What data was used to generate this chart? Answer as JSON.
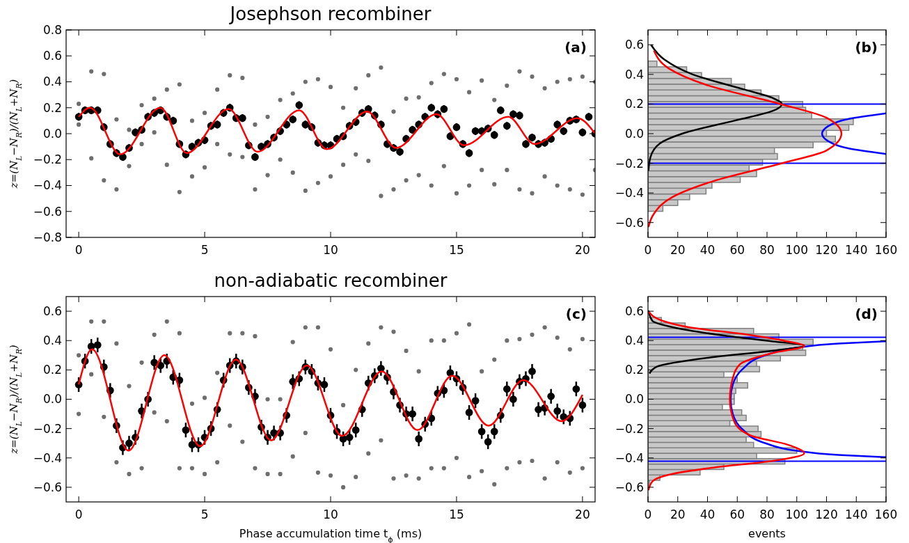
{
  "chart_data": [
    {
      "type": "scatter",
      "title": "Josephson recombiner",
      "ylabel": "z=(N$_{L}$−N$_{R}$)/(N$_{L}$+N$_{R}$)",
      "xlim": [
        -0.5,
        20.5
      ],
      "xticks": [
        0,
        5,
        10,
        15,
        20
      ],
      "ylim": [
        -0.8,
        0.8
      ],
      "yticks": [
        {
          "value": -0.8,
          "label": "−0.8"
        },
        {
          "value": -0.6,
          "label": "−0.6"
        },
        {
          "value": -0.4,
          "label": "−0.4"
        },
        {
          "value": -0.2,
          "label": "−0.2"
        },
        {
          "value": 0,
          "label": "0.0"
        },
        0.2,
        0.4,
        0.6,
        0.8
      ],
      "marker": "circle",
      "annotations": [
        "(a)"
      ],
      "series": [
        {
          "type": "scatter",
          "color": "#6e6e6e",
          "x": [
            0,
            0,
            0.5,
            0.5,
            1,
            1,
            1.5,
            1.5,
            2,
            2,
            2.5,
            2.5,
            3,
            3,
            3.5,
            3.5,
            4,
            4,
            4.5,
            4.5,
            5,
            5,
            5.5,
            5.5,
            6,
            6,
            6.5,
            6.5,
            7,
            7,
            7.5,
            7.5,
            8,
            8,
            8.5,
            8.5,
            9,
            9,
            9.5,
            9.5,
            10,
            10,
            10.5,
            10.5,
            11,
            11,
            11.5,
            11.5,
            12,
            12,
            12.5,
            12.5,
            13,
            13,
            13.5,
            13.5,
            14,
            14,
            14.5,
            14.5,
            15,
            15,
            15.5,
            15.5,
            16,
            16,
            16.5,
            16.5,
            17,
            17,
            17.5,
            17.5,
            18,
            18,
            18.5,
            18.5,
            19,
            19,
            19.5,
            19.5,
            20,
            20,
            20.5,
            20.5
          ],
          "values": [
            0.23,
            0.07,
            0.48,
            -0.19,
            0.46,
            -0.36,
            0.11,
            -0.43,
            0.03,
            -0.25,
            0.22,
            -0.08,
            0.27,
            0.01,
            0.34,
            -0.24,
            0.38,
            -0.45,
            0.1,
            -0.33,
            0.16,
            -0.26,
            0.34,
            -0.08,
            0.45,
            -0.16,
            0.43,
            -0.18,
            0.07,
            -0.43,
            0.13,
            -0.32,
            0.26,
            -0.2,
            0.31,
            -0.3,
            0.4,
            -0.44,
            0.42,
            -0.38,
            0.36,
            -0.33,
            0.2,
            -0.24,
            0.35,
            -0.16,
            0.45,
            -0.21,
            0.51,
            -0.48,
            0.17,
            -0.43,
            0.27,
            -0.36,
            0.28,
            -0.32,
            0.39,
            -0.4,
            0.46,
            -0.25,
            0.42,
            -0.46,
            0.32,
            -0.4,
            0.41,
            -0.28,
            0.26,
            -0.39,
            0.37,
            -0.28,
            0.48,
            -0.43,
            0.44,
            -0.46,
            0.35,
            -0.33,
            0.4,
            -0.4,
            0.42,
            -0.43,
            0.44,
            -0.47,
            0.4,
            -0.28
          ]
        },
        {
          "type": "scatter",
          "color": "#000000",
          "x": [
            0,
            0.25,
            0.5,
            0.75,
            1,
            1.25,
            1.5,
            1.75,
            2,
            2.25,
            2.5,
            2.75,
            3,
            3.25,
            3.5,
            3.75,
            4,
            4.25,
            4.5,
            4.75,
            5,
            5.25,
            5.5,
            5.75,
            6,
            6.25,
            6.5,
            6.75,
            7,
            7.25,
            7.5,
            7.75,
            8,
            8.25,
            8.5,
            8.75,
            9,
            9.25,
            9.5,
            9.75,
            10,
            10.25,
            10.5,
            10.75,
            11,
            11.25,
            11.5,
            11.75,
            12,
            12.25,
            12.5,
            12.75,
            13,
            13.25,
            13.5,
            13.75,
            14,
            14.25,
            14.5,
            14.75,
            15,
            15.25,
            15.5,
            15.75,
            16,
            16.25,
            16.5,
            16.75,
            17,
            17.25,
            17.5,
            17.75,
            18,
            18.25,
            18.5,
            18.75,
            19,
            19.25,
            19.5,
            19.75,
            20,
            20.25,
            20.5
          ],
          "values": [
            0.13,
            0.18,
            0.18,
            0.18,
            0.05,
            -0.08,
            -0.15,
            -0.18,
            -0.11,
            0.01,
            0.03,
            0.13,
            0.16,
            0.18,
            0.13,
            0.1,
            -0.08,
            -0.16,
            -0.1,
            -0.07,
            -0.05,
            0.06,
            0.07,
            0.16,
            0.2,
            0.12,
            0.12,
            -0.09,
            -0.18,
            -0.1,
            -0.08,
            -0.03,
            0.02,
            0.07,
            0.11,
            0.22,
            0.07,
            0.05,
            -0.07,
            -0.09,
            -0.09,
            -0.04,
            -0.02,
            0.06,
            0.09,
            0.16,
            0.19,
            0.14,
            0.07,
            -0.08,
            -0.11,
            -0.14,
            -0.04,
            0.03,
            0.07,
            0.13,
            0.2,
            0.15,
            0.19,
            -0.02,
            0.05,
            -0.08,
            -0.15,
            0.02,
            0.02,
            0.04,
            -0.01,
            0.18,
            0.06,
            0.15,
            0.14,
            -0.08,
            -0.03,
            -0.08,
            -0.07,
            -0.04,
            0.07,
            0.02,
            0.1,
            0.11,
            0.01,
            0.13,
            0.0
          ],
          "errors": [
            0.03,
            0.03,
            0.03,
            0.03,
            0.03,
            0.03,
            0.03,
            0.03,
            0.03,
            0.03,
            0.03,
            0.03,
            0.03,
            0.03,
            0.03,
            0.03,
            0.03,
            0.03,
            0.03,
            0.03,
            0.03,
            0.03,
            0.03,
            0.03,
            0.03,
            0.03,
            0.03,
            0.03,
            0.03,
            0.03,
            0.03,
            0.03,
            0.03,
            0.03,
            0.03,
            0.03,
            0.03,
            0.03,
            0.03,
            0.03,
            0.03,
            0.03,
            0.03,
            0.03,
            0.03,
            0.03,
            0.03,
            0.03,
            0.03,
            0.03,
            0.03,
            0.03,
            0.03,
            0.03,
            0.03,
            0.03,
            0.03,
            0.03,
            0.03,
            0.03,
            0.03,
            0.03,
            0.03,
            0.03,
            0.03,
            0.03,
            0.03,
            0.03,
            0.03,
            0.03,
            0.03,
            0.03,
            0.03,
            0.03,
            0.03,
            0.03,
            0.03,
            0.03,
            0.03,
            0.03,
            0.03,
            0.03,
            0.03
          ]
        },
        {
          "type": "line",
          "marker": "none",
          "color": "#ff0000",
          "x": [
            0,
            0.45,
            1.65,
            3.24,
            4.29,
            5.95,
            7.1,
            8.75,
            9.85,
            11.45,
            12.6,
            14.2,
            15.3,
            17.05,
            18.1,
            19.8,
            20.5
          ],
          "values": [
            0.13,
            0.2,
            -0.16,
            0.2,
            -0.15,
            0.19,
            -0.14,
            0.18,
            -0.12,
            0.17,
            -0.11,
            0.15,
            -0.09,
            0.13,
            -0.08,
            0.12,
            0.0
          ]
        }
      ]
    },
    {
      "type": "histogram",
      "orientation": "horizontal",
      "color": "#c8c8c8",
      "xlim": [
        0,
        160
      ],
      "xticks": [
        0,
        20,
        40,
        60,
        80,
        100,
        120,
        140,
        160
      ],
      "ylim": [
        -0.7,
        0.7
      ],
      "yticks": [
        {
          "value": -0.6,
          "label": "−0.6"
        },
        {
          "value": -0.4,
          "label": "−0.4"
        },
        {
          "value": -0.2,
          "label": "−0.2"
        },
        {
          "value": 0,
          "label": "0.0"
        },
        0.2,
        0.4,
        0.6
      ],
      "annotations": [
        "(b)"
      ],
      "bins": [
        -0.524,
        -0.485,
        -0.446,
        -0.407,
        -0.368,
        -0.329,
        -0.29,
        -0.251,
        -0.212,
        -0.173,
        -0.134,
        -0.095,
        -0.056,
        -0.017,
        0.022,
        0.061,
        0.1,
        0.139,
        0.178,
        0.217,
        0.256,
        0.295,
        0.334,
        0.373,
        0.412,
        0.451,
        0.49
      ],
      "values": [
        10,
        20,
        28,
        39,
        43,
        62,
        73,
        68,
        77,
        87,
        85,
        111,
        126,
        120,
        135,
        138,
        110,
        106,
        104,
        88,
        76,
        65,
        56,
        36,
        26,
        6
      ],
      "ref_lines": [
        {
          "axis": "y",
          "value": 0.2,
          "color": "#0000ff"
        },
        {
          "axis": "y",
          "value": -0.2,
          "color": "#0000ff"
        }
      ],
      "series": [
        {
          "type": "line",
          "color": "#0000ff",
          "x": [
            -0.137,
            -0.1,
            -0.05,
            0,
            0.05,
            0.1,
            0.137
          ],
          "values": [
            160,
            135,
            121,
            117,
            121,
            135,
            160
          ]
        },
        {
          "type": "line",
          "color": "#000000",
          "x": [
            -0.25,
            -0.16,
            -0.066,
            0,
            0.09,
            0.154,
            0.2,
            0.24,
            0.3,
            0.4,
            0.5,
            0.6
          ],
          "values": [
            0.3,
            1.6,
            8,
            23,
            59,
            84,
            90,
            84,
            64,
            30,
            11,
            2
          ]
        },
        {
          "type": "line",
          "color": "#ff0000",
          "x": [
            -0.63,
            -0.54,
            -0.43,
            -0.32,
            -0.2,
            -0.113,
            0,
            0.107,
            0.2,
            0.33,
            0.44,
            0.56
          ],
          "values": [
            0.3,
            4,
            16,
            44,
            90,
            120,
            130,
            120,
            89,
            39,
            14,
            4
          ]
        }
      ]
    },
    {
      "type": "scatter",
      "title": "non-adiabatic recombiner",
      "xlabel": "Phase accumulation time t$_{ϕ}$ (ms)",
      "ylabel": "z=(N$_{L}$−N$_{R}$)/(N$_{L}$+N$_{R}$)",
      "xlim": [
        -0.5,
        20.5
      ],
      "xticks": [
        0,
        5,
        10,
        15,
        20
      ],
      "ylim": [
        -0.7,
        0.7
      ],
      "yticks": [
        {
          "value": -0.6,
          "label": "−0.6"
        },
        {
          "value": -0.4,
          "label": "−0.4"
        },
        {
          "value": -0.2,
          "label": "−0.2"
        },
        {
          "value": 0,
          "label": "0.0"
        },
        0.2,
        0.4,
        0.6
      ],
      "marker": "circle",
      "annotations": [
        "(c)"
      ],
      "series": [
        {
          "type": "scatter",
          "color": "#6e6e6e",
          "x": [
            0,
            0,
            0.5,
            0.5,
            1,
            1,
            1.5,
            1.5,
            2,
            2,
            2.5,
            2.5,
            3,
            3,
            3.5,
            3.5,
            4,
            4,
            4.5,
            4.5,
            5,
            5,
            5.5,
            5.5,
            6,
            6,
            6.5,
            6.5,
            7,
            7,
            7.5,
            7.5,
            8,
            8,
            8.5,
            8.5,
            9,
            9,
            9.5,
            9.5,
            10,
            10,
            10.5,
            10.5,
            11,
            11,
            11.5,
            11.5,
            12,
            12,
            12.5,
            12.5,
            13,
            13,
            13.5,
            13.5,
            14,
            14,
            14.5,
            14.5,
            15,
            15,
            15.5,
            15.5,
            16,
            16,
            16.5,
            16.5,
            17,
            17,
            17.5,
            17.5,
            18,
            18,
            18.5,
            18.5,
            19,
            19,
            19.5,
            19.5,
            20,
            20
          ],
          "values": [
            0.3,
            -0.1,
            0.53,
            0.17,
            0.53,
            -0.12,
            0.38,
            -0.43,
            0.09,
            -0.51,
            0.25,
            -0.47,
            0.44,
            -0.09,
            0.53,
            -0.15,
            0.45,
            -0.47,
            -0.03,
            -0.47,
            0.01,
            -0.51,
            0.18,
            -0.43,
            0.45,
            -0.18,
            0.45,
            -0.29,
            0.43,
            -0.47,
            0.0,
            -0.51,
            0.0,
            -0.51,
            0.39,
            -0.39,
            0.49,
            -0.23,
            0.49,
            -0.5,
            0.34,
            -0.52,
            -0.04,
            -0.6,
            0.2,
            -0.53,
            0.38,
            -0.37,
            0.49,
            -0.28,
            0.46,
            -0.54,
            0.33,
            -0.52,
            0.19,
            -0.54,
            0.4,
            -0.47,
            0.4,
            -0.47,
            0.45,
            -0.4,
            0.51,
            -0.53,
            0.19,
            -0.49,
            0.27,
            -0.58,
            0.4,
            -0.47,
            0.41,
            -0.43,
            0.44,
            -0.42,
            0.49,
            -0.54,
            0.42,
            -0.43,
            0.34,
            -0.5,
            0.41,
            -0.47
          ]
        },
        {
          "type": "scatter",
          "color": "#000000",
          "x": [
            0,
            0.25,
            0.5,
            0.75,
            1,
            1.25,
            1.5,
            1.75,
            2,
            2.25,
            2.5,
            2.75,
            3,
            3.25,
            3.5,
            3.75,
            4,
            4.25,
            4.5,
            4.75,
            5,
            5.25,
            5.5,
            5.75,
            6,
            6.25,
            6.5,
            6.75,
            7,
            7.25,
            7.5,
            7.75,
            8,
            8.25,
            8.5,
            8.75,
            9,
            9.25,
            9.5,
            9.75,
            10,
            10.25,
            10.5,
            10.75,
            11,
            11.25,
            11.5,
            11.75,
            12,
            12.25,
            12.5,
            12.75,
            13,
            13.25,
            13.5,
            13.75,
            14,
            14.25,
            14.5,
            14.75,
            15,
            15.25,
            15.5,
            15.75,
            16,
            16.25,
            16.5,
            16.75,
            17,
            17.25,
            17.5,
            17.75,
            18,
            18.25,
            18.5,
            18.75,
            19,
            19.25,
            19.5,
            19.75,
            20
          ],
          "values": [
            0.1,
            0.26,
            0.36,
            0.37,
            0.22,
            0.06,
            -0.18,
            -0.33,
            -0.3,
            -0.26,
            -0.08,
            0.0,
            0.25,
            0.23,
            0.26,
            0.15,
            0.13,
            -0.21,
            -0.31,
            -0.31,
            -0.26,
            -0.2,
            -0.07,
            0.13,
            0.23,
            0.26,
            0.22,
            0.08,
            0.02,
            -0.19,
            -0.26,
            -0.23,
            -0.23,
            -0.11,
            0.12,
            0.14,
            0.22,
            0.19,
            0.11,
            0.1,
            -0.11,
            -0.22,
            -0.27,
            -0.26,
            -0.21,
            -0.07,
            0.11,
            0.16,
            0.21,
            0.15,
            0.05,
            -0.04,
            -0.1,
            -0.1,
            -0.27,
            -0.17,
            -0.13,
            0.04,
            0.06,
            0.18,
            0.14,
            0.08,
            -0.09,
            -0.01,
            -0.22,
            -0.29,
            -0.22,
            -0.11,
            0.07,
            0.0,
            0.12,
            0.14,
            0.19,
            -0.07,
            -0.06,
            0.02,
            -0.08,
            -0.12,
            -0.13,
            0.07,
            -0.04
          ],
          "errors": [
            0.05,
            0.05,
            0.05,
            0.05,
            0.05,
            0.05,
            0.05,
            0.05,
            0.05,
            0.05,
            0.05,
            0.05,
            0.05,
            0.05,
            0.05,
            0.05,
            0.05,
            0.05,
            0.05,
            0.05,
            0.05,
            0.05,
            0.05,
            0.05,
            0.05,
            0.05,
            0.05,
            0.05,
            0.05,
            0.05,
            0.05,
            0.05,
            0.05,
            0.05,
            0.05,
            0.05,
            0.05,
            0.05,
            0.05,
            0.05,
            0.05,
            0.05,
            0.05,
            0.05,
            0.05,
            0.05,
            0.05,
            0.05,
            0.05,
            0.05,
            0.05,
            0.05,
            0.05,
            0.05,
            0.05,
            0.05,
            0.05,
            0.05,
            0.05,
            0.05,
            0.05,
            0.05,
            0.05,
            0.05,
            0.05,
            0.05,
            0.05,
            0.05,
            0.05,
            0.05,
            0.05,
            0.05,
            0.05,
            0.05,
            0.05,
            0.05,
            0.05,
            0.05,
            0.05,
            0.05,
            0.05
          ]
        },
        {
          "type": "line",
          "marker": "none",
          "color": "#ff0000",
          "x": [
            0,
            0.53,
            1.98,
            3.4,
            4.82,
            6.24,
            7.64,
            9.06,
            10.46,
            12.03,
            13.45,
            14.83,
            16.27,
            17.65,
            19.17,
            20.0
          ],
          "values": [
            0.1,
            0.34,
            -0.35,
            0.3,
            -0.32,
            0.27,
            -0.28,
            0.23,
            -0.25,
            0.19,
            -0.21,
            0.16,
            -0.18,
            0.13,
            -0.15,
            0.03
          ]
        }
      ]
    },
    {
      "type": "histogram",
      "orientation": "horizontal",
      "color": "#c8c8c8",
      "xlabel": "events",
      "xlim": [
        0,
        160
      ],
      "xticks": [
        0,
        20,
        40,
        60,
        80,
        100,
        120,
        140,
        160
      ],
      "ylim": [
        -0.7,
        0.7
      ],
      "yticks": [
        {
          "value": -0.6,
          "label": "−0.6"
        },
        {
          "value": -0.4,
          "label": "−0.4"
        },
        {
          "value": -0.2,
          "label": "−0.2"
        },
        {
          "value": 0,
          "label": "0.0"
        },
        0.2,
        0.4,
        0.6
      ],
      "annotations": [
        "(d)"
      ],
      "bins": [
        -0.59,
        -0.553,
        -0.516,
        -0.479,
        -0.442,
        -0.405,
        -0.368,
        -0.331,
        -0.294,
        -0.257,
        -0.22,
        -0.183,
        -0.146,
        -0.109,
        -0.072,
        -0.035,
        0.002,
        0.039,
        0.076,
        0.113,
        0.15,
        0.187,
        0.224,
        0.261,
        0.298,
        0.335,
        0.372,
        0.409,
        0.446,
        0.483,
        0.52,
        0.557
      ],
      "values": [
        1,
        8,
        35,
        51,
        92,
        73,
        100,
        71,
        66,
        76,
        74,
        55,
        66,
        63,
        50,
        58,
        58,
        59,
        67,
        60,
        51,
        75,
        73,
        89,
        106,
        104,
        111,
        88,
        71,
        25,
        9
      ],
      "ref_lines": [
        {
          "axis": "y",
          "value": 0.422,
          "color": "#0000ff"
        },
        {
          "axis": "y",
          "value": -0.422,
          "color": "#0000ff"
        }
      ],
      "series": [
        {
          "type": "line",
          "color": "#0000ff",
          "x": [
            -0.395,
            -0.38,
            -0.35,
            -0.3,
            -0.2,
            -0.1,
            0,
            0.1,
            0.2,
            0.3,
            0.35,
            0.38,
            0.395
          ],
          "values": [
            160,
            128,
            99,
            79,
            63,
            57,
            55.5,
            57,
            63,
            79,
            99,
            128,
            160
          ]
        },
        {
          "type": "line",
          "color": "#000000",
          "x": [
            0.175,
            0.222,
            0.284,
            0.331,
            0.366,
            0.394,
            0.433,
            0.49,
            0.534,
            0.605
          ],
          "values": [
            1,
            6,
            41,
            84,
            105,
            84,
            52,
            17,
            3,
            0.3
          ]
        },
        {
          "type": "line",
          "color": "#ff0000",
          "x": [
            -0.62,
            -0.56,
            -0.51,
            -0.466,
            -0.42,
            -0.369,
            -0.31,
            -0.247,
            -0.153,
            0,
            0.144,
            0.24,
            0.316,
            0.3625,
            0.4,
            0.44,
            0.49,
            0.534,
            0.597
          ],
          "values": [
            0.3,
            3,
            16,
            44,
            84,
            105,
            94,
            69,
            58,
            55,
            57,
            62,
            84,
            105,
            91,
            67,
            28,
            10,
            0.5
          ]
        }
      ]
    }
  ]
}
